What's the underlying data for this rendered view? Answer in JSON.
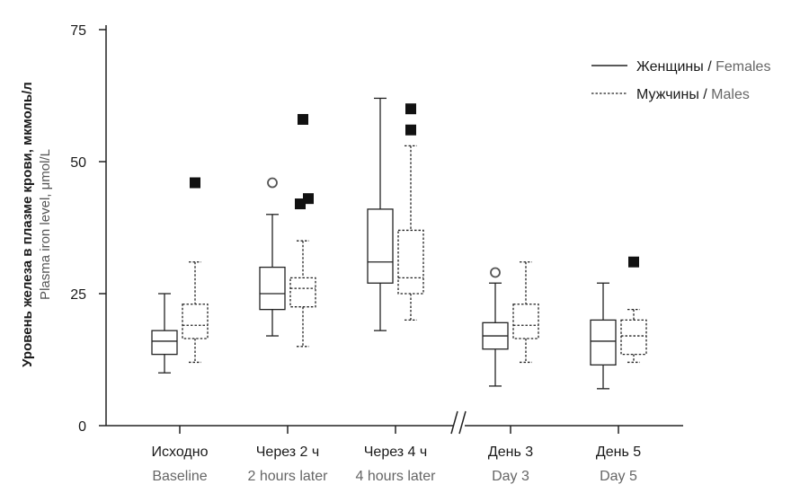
{
  "chart_data": {
    "type": "boxplot",
    "ylabel_ru": "Уровень железа в плазме крови, мкмоль/л",
    "ylabel_en": "Plasma iron level, μmol/L",
    "ylim": [
      0,
      75
    ],
    "yticks": [
      0,
      25,
      50,
      75
    ],
    "axis_break": "between Через 4 ч / 4 hours later and День 3 / Day 3",
    "legend_position": "top-right",
    "categories": [
      {
        "ru": "Исходно",
        "en": "Baseline"
      },
      {
        "ru": "Через 2 ч",
        "en": "2 hours later"
      },
      {
        "ru": "Через 4 ч",
        "en": "4 hours later"
      },
      {
        "ru": "День 3",
        "en": "Day 3"
      },
      {
        "ru": "День 5",
        "en": "Day 5"
      }
    ],
    "series": [
      {
        "name_ru": "Женщины",
        "name_en": "Females",
        "line_style": "solid",
        "boxes": [
          {
            "min": 10,
            "q1": 13.5,
            "median": 16,
            "q3": 18,
            "max": 25,
            "outliers": [],
            "extremes": []
          },
          {
            "min": 17,
            "q1": 22,
            "median": 25,
            "q3": 30,
            "max": 40,
            "outliers": [
              46
            ],
            "extremes": []
          },
          {
            "min": 18,
            "q1": 27,
            "median": 31,
            "q3": 41,
            "max": 62,
            "outliers": [],
            "extremes": []
          },
          {
            "min": 7.5,
            "q1": 14.5,
            "median": 17,
            "q3": 19.5,
            "max": 27,
            "outliers": [
              29
            ],
            "extremes": []
          },
          {
            "min": 7,
            "q1": 11.5,
            "median": 16,
            "q3": 20,
            "max": 27,
            "outliers": [],
            "extremes": []
          }
        ]
      },
      {
        "name_ru": "Мужчины",
        "name_en": "Males",
        "line_style": "dashed",
        "boxes": [
          {
            "min": 12,
            "q1": 16.5,
            "median": 19,
            "q3": 23,
            "max": 31,
            "outliers": [],
            "extremes": [
              46
            ]
          },
          {
            "min": 15,
            "q1": 22.5,
            "median": 26,
            "q3": 28,
            "max": 35,
            "outliers": [],
            "extremes": [
              58,
              43,
              42
            ]
          },
          {
            "min": 20,
            "q1": 25,
            "median": 28,
            "q3": 37,
            "max": 53,
            "outliers": [],
            "extremes": [
              60,
              56
            ]
          },
          {
            "min": 12,
            "q1": 16.5,
            "median": 19,
            "q3": 23,
            "max": 31,
            "outliers": [],
            "extremes": []
          },
          {
            "min": 12,
            "q1": 13.5,
            "median": 17,
            "q3": 20,
            "max": 22,
            "outliers": [],
            "extremes": [
              31
            ]
          }
        ]
      }
    ]
  },
  "legend": {
    "items": [
      {
        "ru": "Женщины",
        "sep": " / ",
        "en": "Females"
      },
      {
        "ru": "Мужчины",
        "sep": " / ",
        "en": "Males"
      }
    ]
  }
}
